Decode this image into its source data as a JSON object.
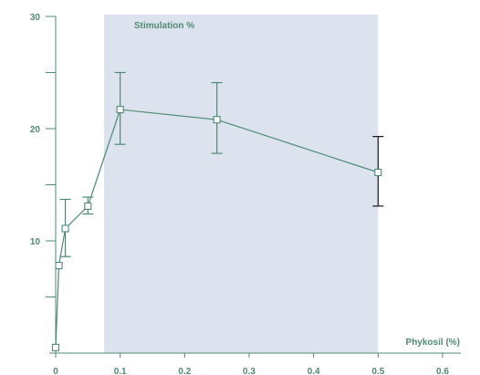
{
  "chart_data": {
    "type": "line",
    "xlabel": "Phykosil (%)",
    "ylabel": "",
    "xlim": [
      0,
      0.6
    ],
    "ylim": [
      0,
      30
    ],
    "x_ticks": [
      "0",
      "0.1",
      "0.2",
      "0.3",
      "0.4",
      "0.5",
      "0.6"
    ],
    "y_ticks": [
      "10",
      "20",
      "30"
    ],
    "y_minor_ticks": [
      5,
      15,
      25
    ],
    "shaded_region": {
      "x": [
        0.075,
        0.5
      ],
      "label": "Stimulation %"
    },
    "series": [
      {
        "x": [
          0,
          0.005,
          0.015,
          0.05,
          0.1,
          0.25,
          0.5
        ],
        "y": [
          0.5,
          7.8,
          11.1,
          13.1,
          21.7,
          20.8,
          16.1
        ],
        "error": [
          [
            0.5,
            0.5
          ],
          [
            7.8,
            7.8
          ],
          [
            8.6,
            13.7
          ],
          [
            12.4,
            13.9
          ],
          [
            18.6,
            25.0
          ],
          [
            17.8,
            24.1
          ],
          [
            13.1,
            19.3
          ]
        ]
      }
    ],
    "colors": {
      "line": "#4f8a73",
      "marker_fill": "#ffffff",
      "marker_stroke": "#4f8a73",
      "band": "#dde3ee",
      "axis": "#4f8a73",
      "last_error_bar": "#1a1a1a"
    }
  }
}
